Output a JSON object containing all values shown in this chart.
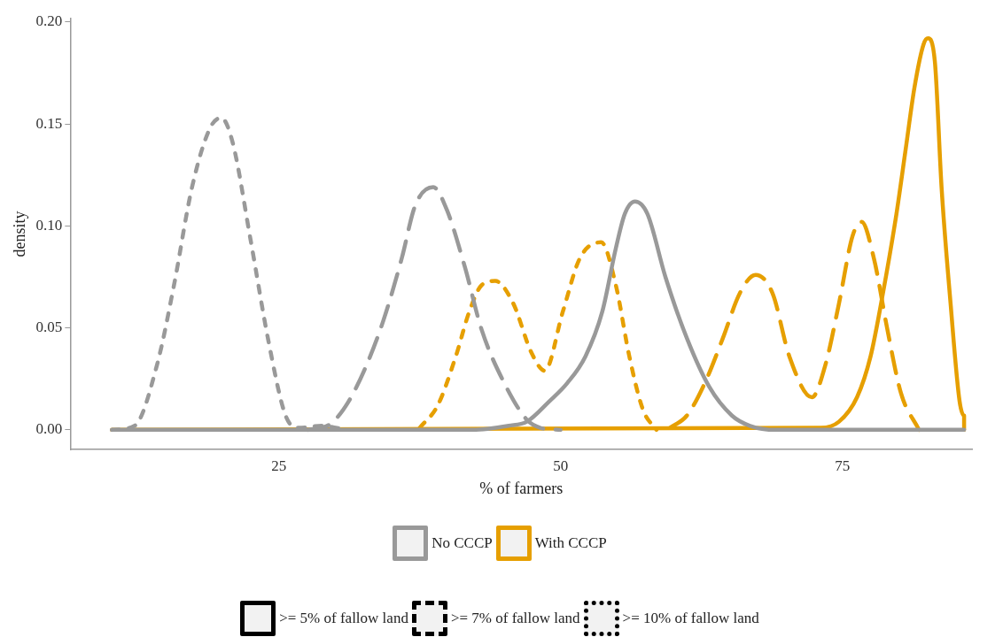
{
  "chart_data": {
    "type": "line",
    "xlabel": "% of farmers",
    "ylabel": "density",
    "xlim": [
      6.5,
      86.5
    ],
    "ylim": [
      -0.0096,
      0.2016
    ],
    "xticks": [
      25,
      50,
      75
    ],
    "yticks": [
      {
        "value": 0,
        "label": "0.00"
      },
      {
        "value": 0.05,
        "label": "0.05"
      },
      {
        "value": 0.1,
        "label": "0.10"
      },
      {
        "value": 0.15,
        "label": "0.15"
      },
      {
        "value": 0.2,
        "label": "0.20"
      }
    ],
    "grid": false,
    "annotations": [
      "No CCCP",
      "With CCCP",
      ">= 5% of fallow land",
      ">= 7% of fallow land",
      ">= 10% of fallow land"
    ],
    "series": [
      {
        "color": "#999999",
        "line_style": "solid",
        "x": [
          10.2,
          42.2,
          45.4,
          47.0,
          49.0,
          50.6,
          52.2,
          53.7,
          54.9,
          55.7,
          56.6,
          57.7,
          59.3,
          61.2,
          63.2,
          65.2,
          66.8,
          69.1,
          85.8
        ],
        "values": [
          0,
          0,
          0.002,
          0.004,
          0.014,
          0.023,
          0.036,
          0.058,
          0.089,
          0.106,
          0.112,
          0.106,
          0.075,
          0.045,
          0.021,
          0.007,
          0.002,
          0,
          0
        ]
      },
      {
        "color": "#999999",
        "line_style": "dashed",
        "x": [
          27.6,
          29.6,
          31.2,
          32.8,
          34.3,
          35.9,
          37.1,
          38.7,
          39.9,
          41.5,
          43.0,
          45.0,
          47.0,
          48.2,
          50.0
        ],
        "values": [
          0,
          0.003,
          0.014,
          0.032,
          0.054,
          0.084,
          0.11,
          0.119,
          0.108,
          0.08,
          0.049,
          0.023,
          0.005,
          0.001,
          0
        ]
      },
      {
        "color": "#999999",
        "line_style": "dotted",
        "x": [
          10.2,
          12.2,
          14.2,
          15.7,
          17.3,
          18.9,
          19.9,
          20.9,
          22.5,
          24.1,
          25.6,
          26.8,
          28.8,
          31.0
        ],
        "values": [
          0,
          0.002,
          0.032,
          0.071,
          0.119,
          0.148,
          0.153,
          0.141,
          0.093,
          0.043,
          0.007,
          0.001,
          0.002,
          0
        ]
      },
      {
        "color": "#e69f00",
        "line_style": "solid",
        "x": [
          10.2,
          73.1,
          74.7,
          76.3,
          77.5,
          78.6,
          79.8,
          80.6,
          81.4,
          82.2,
          82.6,
          83.2,
          83.8,
          84.6,
          85.4,
          85.8,
          85.8
        ],
        "values": [
          0,
          0.001,
          0.004,
          0.016,
          0.036,
          0.067,
          0.106,
          0.137,
          0.168,
          0.189,
          0.192,
          0.181,
          0.119,
          0.062,
          0.014,
          0.007,
          0
        ]
      },
      {
        "color": "#e69f00",
        "line_style": "dashed",
        "x": [
          59.7,
          61.2,
          62.8,
          64.4,
          65.9,
          67.3,
          68.8,
          70.3,
          72.3,
          73.5,
          74.7,
          75.9,
          76.7,
          77.8,
          79.0,
          80.2,
          81.8
        ],
        "values": [
          0.001,
          0.007,
          0.023,
          0.045,
          0.067,
          0.076,
          0.067,
          0.036,
          0.016,
          0.032,
          0.062,
          0.095,
          0.102,
          0.084,
          0.049,
          0.018,
          0
        ]
      },
      {
        "color": "#e69f00",
        "line_style": "dotted",
        "x": [
          37.5,
          39.1,
          40.7,
          41.9,
          43.0,
          44.2,
          45.8,
          47.4,
          48.6,
          50.2,
          51.7,
          53.6,
          54.9,
          56.1,
          57.3,
          58.5
        ],
        "values": [
          0.001,
          0.012,
          0.036,
          0.058,
          0.071,
          0.073,
          0.062,
          0.038,
          0.029,
          0.058,
          0.084,
          0.092,
          0.071,
          0.036,
          0.01,
          0
        ]
      }
    ]
  }
}
